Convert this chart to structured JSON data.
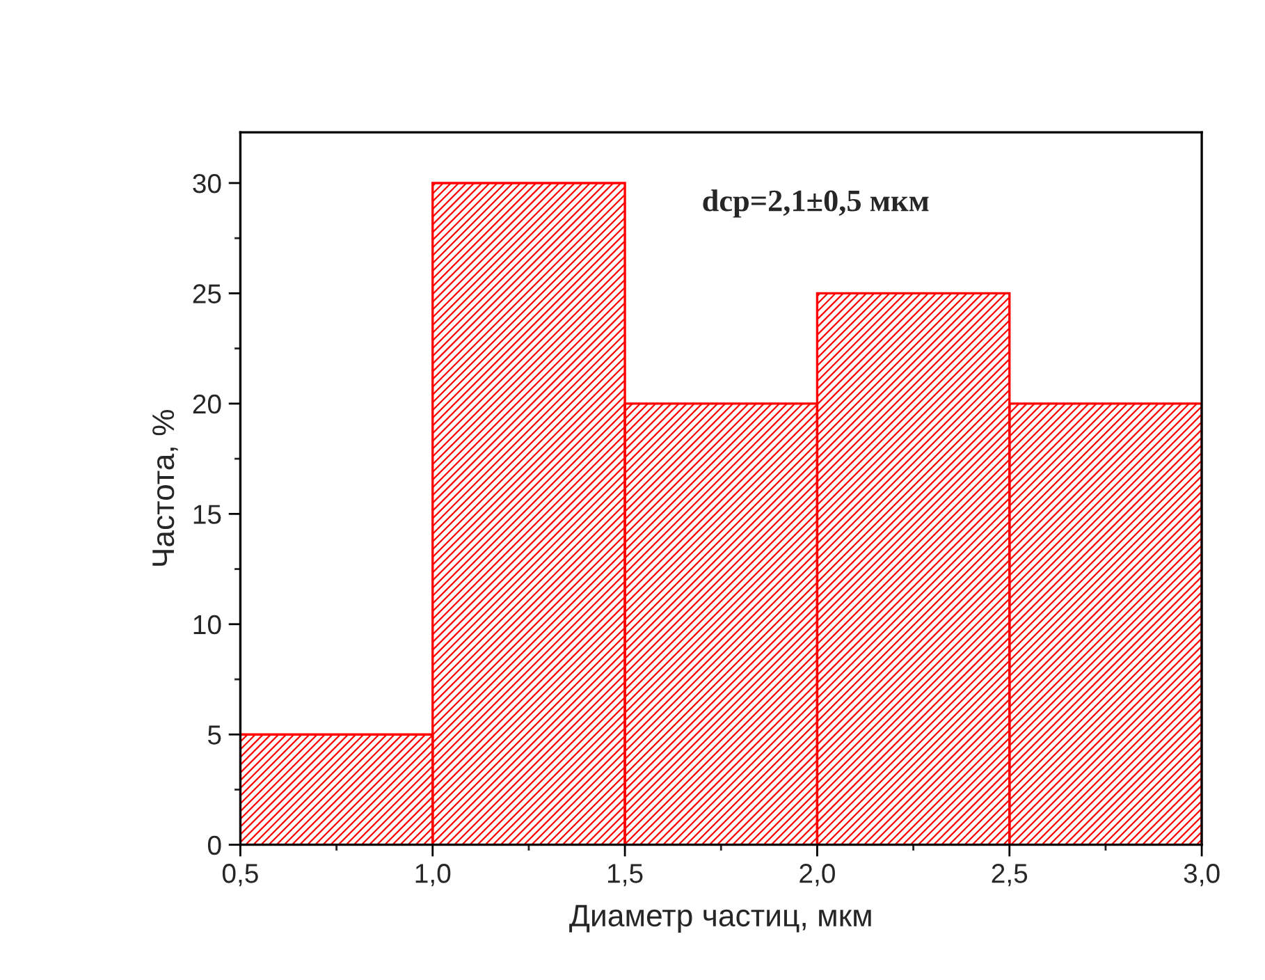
{
  "chart_data": {
    "type": "histogram",
    "xlabel": "Диаметр частиц, мкм",
    "ylabel": "Частота, %",
    "bins": [
      0.5,
      1.0,
      1.5,
      2.0,
      2.5,
      3.0
    ],
    "values": [
      5,
      30,
      20,
      25,
      20
    ],
    "color": "#ff0000",
    "xlim": [
      0.5,
      3.0
    ],
    "xticks": [
      {
        "value": 0.5,
        "label": "0,5"
      },
      {
        "value": 1.0,
        "label": "1,0"
      },
      {
        "value": 1.5,
        "label": "1,5"
      },
      {
        "value": 2.0,
        "label": "2,0"
      },
      {
        "value": 2.5,
        "label": "2,5"
      },
      {
        "value": 3.0,
        "label": "3,0"
      }
    ],
    "ylim": [
      0,
      32.3
    ],
    "yticks": [
      0,
      5,
      10,
      15,
      20,
      25,
      30
    ],
    "grid": false,
    "annotations": [
      "dср=2,1±0,5 мкм"
    ]
  }
}
